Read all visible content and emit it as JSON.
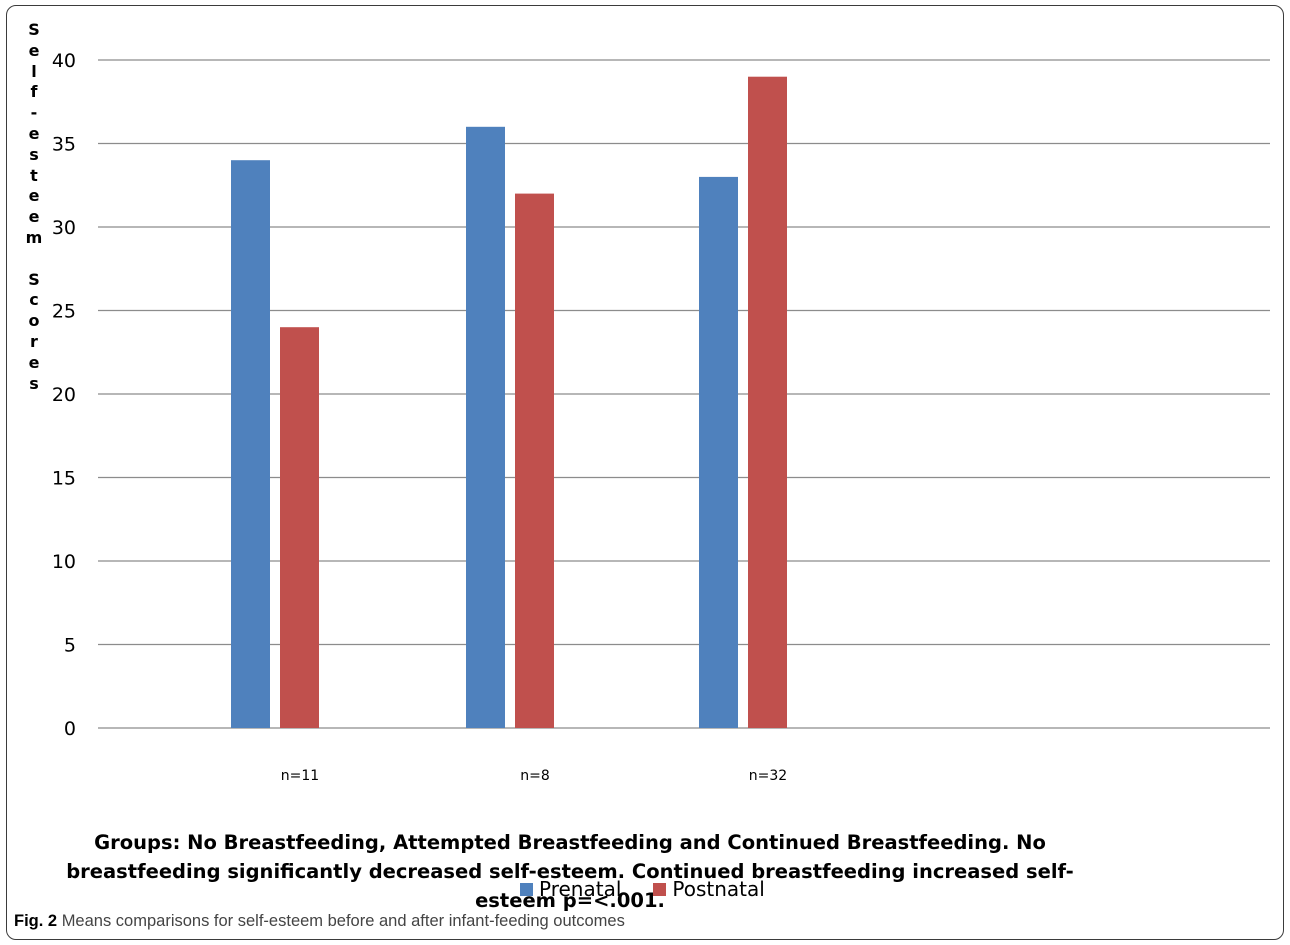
{
  "chart_data": {
    "type": "bar",
    "categories": [
      "n=11",
      "n=8",
      "n=32"
    ],
    "series": [
      {
        "name": "Prenatal",
        "values": [
          34,
          36,
          33
        ],
        "color": "#4f81bd"
      },
      {
        "name": "Postnatal",
        "values": [
          24,
          32,
          39
        ],
        "color": "#c0504d"
      }
    ],
    "ylabel": "Self-esteem Scores",
    "ylabel_letters": [
      "S",
      "e",
      "l",
      "f",
      "-",
      "e",
      "s",
      "t",
      "e",
      "e",
      "m",
      "",
      "S",
      "c",
      "o",
      "r",
      "e",
      "s"
    ],
    "ylim": [
      0,
      40
    ],
    "yticks": [
      0,
      5,
      10,
      15,
      20,
      25,
      30,
      35,
      40
    ],
    "grid": true,
    "legend_position": "bottom-center",
    "note": "Groups: No Breastfeeding, Attempted Breastfeeding and Continued Breastfeeding. No breastfeeding significantly decreased self-esteem. Continued breastfeeding increased self-esteem p=<.001."
  },
  "caption": {
    "label": "Fig. 2",
    "text": "Means comparisons for self-esteem before and after infant-feeding outcomes"
  }
}
